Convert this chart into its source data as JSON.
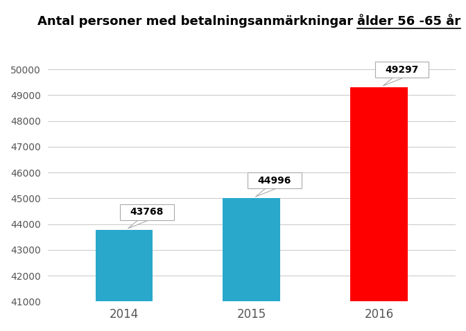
{
  "categories": [
    "2014",
    "2015",
    "2016"
  ],
  "values": [
    43768,
    44996,
    49297
  ],
  "bar_colors": [
    "#29a8cc",
    "#29a8cc",
    "#ff0000"
  ],
  "title_part1": "Antal personer med betalningsanmärkningar ",
  "title_part2": "ålder 56 -65 år",
  "ylim": [
    41000,
    51000
  ],
  "yticks": [
    41000,
    42000,
    43000,
    44000,
    45000,
    46000,
    47000,
    48000,
    49000,
    50000
  ],
  "background_color": "#ffffff",
  "grid_color": "#cccccc",
  "title_fontsize": 13
}
